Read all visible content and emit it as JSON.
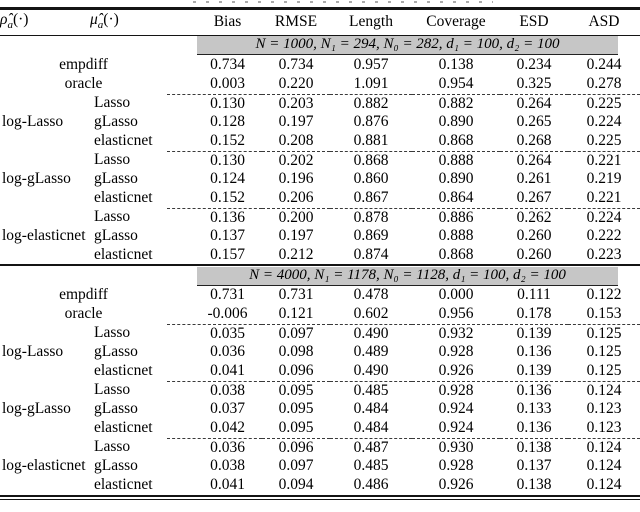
{
  "colors": {
    "band_bg": "#c6c6c6"
  },
  "col1_header": {
    "sym": "ρ̂",
    "sub": "a",
    "suffix": "(·)"
  },
  "col2_header": {
    "sym": "μ̂",
    "sub": "a",
    "suffix": "(·)"
  },
  "columns": [
    "Bias",
    "RMSE",
    "Length",
    "Coverage",
    "ESD",
    "ASD"
  ],
  "sections": [
    {
      "header": "N = 1000, N₁ = 294, N₀ = 282, d₁ = 100, d₂ = 100",
      "simple_rows": [
        {
          "label": "empdiff",
          "values": [
            "0.734",
            "0.734",
            "0.957",
            "0.138",
            "0.234",
            "0.244"
          ]
        },
        {
          "label": "oracle",
          "values": [
            "0.003",
            "0.220",
            "1.091",
            "0.954",
            "0.325",
            "0.278"
          ]
        }
      ],
      "groups": [
        {
          "label": "log-Lasso",
          "rows": [
            {
              "method": "Lasso",
              "values": [
                "0.130",
                "0.203",
                "0.882",
                "0.882",
                "0.264",
                "0.225"
              ]
            },
            {
              "method": "gLasso",
              "values": [
                "0.128",
                "0.197",
                "0.876",
                "0.890",
                "0.265",
                "0.224"
              ]
            },
            {
              "method": "elasticnet",
              "values": [
                "0.152",
                "0.208",
                "0.881",
                "0.868",
                "0.268",
                "0.225"
              ]
            }
          ]
        },
        {
          "label": "log-gLasso",
          "rows": [
            {
              "method": "Lasso",
              "values": [
                "0.130",
                "0.202",
                "0.868",
                "0.888",
                "0.264",
                "0.221"
              ]
            },
            {
              "method": "gLasso",
              "values": [
                "0.124",
                "0.196",
                "0.860",
                "0.890",
                "0.261",
                "0.219"
              ]
            },
            {
              "method": "elasticnet",
              "values": [
                "0.152",
                "0.206",
                "0.867",
                "0.864",
                "0.267",
                "0.221"
              ]
            }
          ]
        },
        {
          "label": "log-elasticnet",
          "rows": [
            {
              "method": "Lasso",
              "values": [
                "0.136",
                "0.200",
                "0.878",
                "0.886",
                "0.262",
                "0.224"
              ]
            },
            {
              "method": "gLasso",
              "values": [
                "0.137",
                "0.197",
                "0.869",
                "0.888",
                "0.260",
                "0.222"
              ]
            },
            {
              "method": "elasticnet",
              "values": [
                "0.157",
                "0.212",
                "0.874",
                "0.868",
                "0.260",
                "0.223"
              ]
            }
          ]
        }
      ]
    },
    {
      "header": "N = 4000, N₁ = 1178, N₀ = 1128, d₁ = 100, d₂ = 100",
      "simple_rows": [
        {
          "label": "empdiff",
          "values": [
            "0.731",
            "0.731",
            "0.478",
            "0.000",
            "0.111",
            "0.122"
          ]
        },
        {
          "label": "oracle",
          "values": [
            "-0.006",
            "0.121",
            "0.602",
            "0.956",
            "0.178",
            "0.153"
          ]
        }
      ],
      "groups": [
        {
          "label": "log-Lasso",
          "rows": [
            {
              "method": "Lasso",
              "values": [
                "0.035",
                "0.097",
                "0.490",
                "0.932",
                "0.139",
                "0.125"
              ]
            },
            {
              "method": "gLasso",
              "values": [
                "0.036",
                "0.098",
                "0.489",
                "0.928",
                "0.136",
                "0.125"
              ]
            },
            {
              "method": "elasticnet",
              "values": [
                "0.041",
                "0.096",
                "0.490",
                "0.926",
                "0.139",
                "0.125"
              ]
            }
          ]
        },
        {
          "label": "log-gLasso",
          "rows": [
            {
              "method": "Lasso",
              "values": [
                "0.038",
                "0.095",
                "0.485",
                "0.928",
                "0.136",
                "0.124"
              ]
            },
            {
              "method": "gLasso",
              "values": [
                "0.037",
                "0.095",
                "0.484",
                "0.924",
                "0.133",
                "0.123"
              ]
            },
            {
              "method": "elasticnet",
              "values": [
                "0.042",
                "0.095",
                "0.484",
                "0.924",
                "0.136",
                "0.123"
              ]
            }
          ]
        },
        {
          "label": "log-elasticnet",
          "rows": [
            {
              "method": "Lasso",
              "values": [
                "0.036",
                "0.096",
                "0.487",
                "0.930",
                "0.138",
                "0.124"
              ]
            },
            {
              "method": "gLasso",
              "values": [
                "0.038",
                "0.097",
                "0.485",
                "0.928",
                "0.137",
                "0.124"
              ]
            },
            {
              "method": "elasticnet",
              "values": [
                "0.041",
                "0.094",
                "0.486",
                "0.926",
                "0.138",
                "0.124"
              ]
            }
          ]
        }
      ]
    }
  ]
}
